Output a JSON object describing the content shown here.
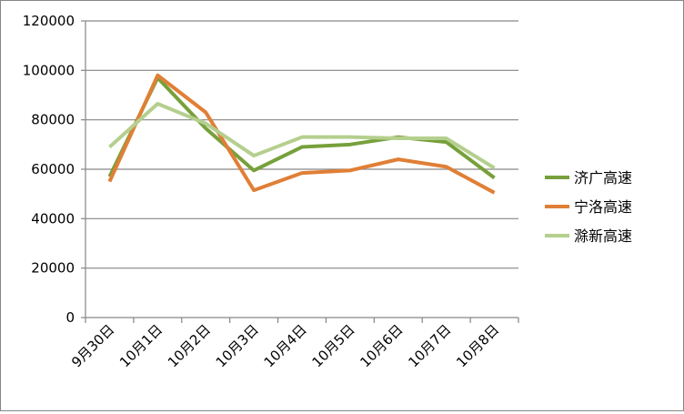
{
  "chart_data": {
    "type": "line",
    "title": "",
    "xlabel": "",
    "ylabel": "",
    "ylim": [
      0,
      120000
    ],
    "yticks": [
      "0",
      "20000",
      "40000",
      "60000",
      "80000",
      "100000",
      "120000"
    ],
    "grid": "horizontal",
    "legend_position": "right",
    "categories": [
      "9月30日",
      "10月1日",
      "10月2日",
      "10月3日",
      "10月4日",
      "10月5日",
      "10月6日",
      "10月7日",
      "10月8日"
    ],
    "series": [
      {
        "name": "济广高速",
        "color": "#77a03b",
        "values": [
          57000,
          97000,
          76500,
          59500,
          69000,
          70000,
          73000,
          71000,
          56500
        ]
      },
      {
        "name": "宁洛高速",
        "color": "#e07f36",
        "values": [
          55000,
          98000,
          83000,
          51500,
          58500,
          59500,
          64000,
          61000,
          50500
        ]
      },
      {
        "name": "滁新高速",
        "color": "#b4cf8e",
        "values": [
          69000,
          86500,
          78500,
          65500,
          73000,
          73000,
          72500,
          72500,
          60500
        ]
      }
    ]
  }
}
